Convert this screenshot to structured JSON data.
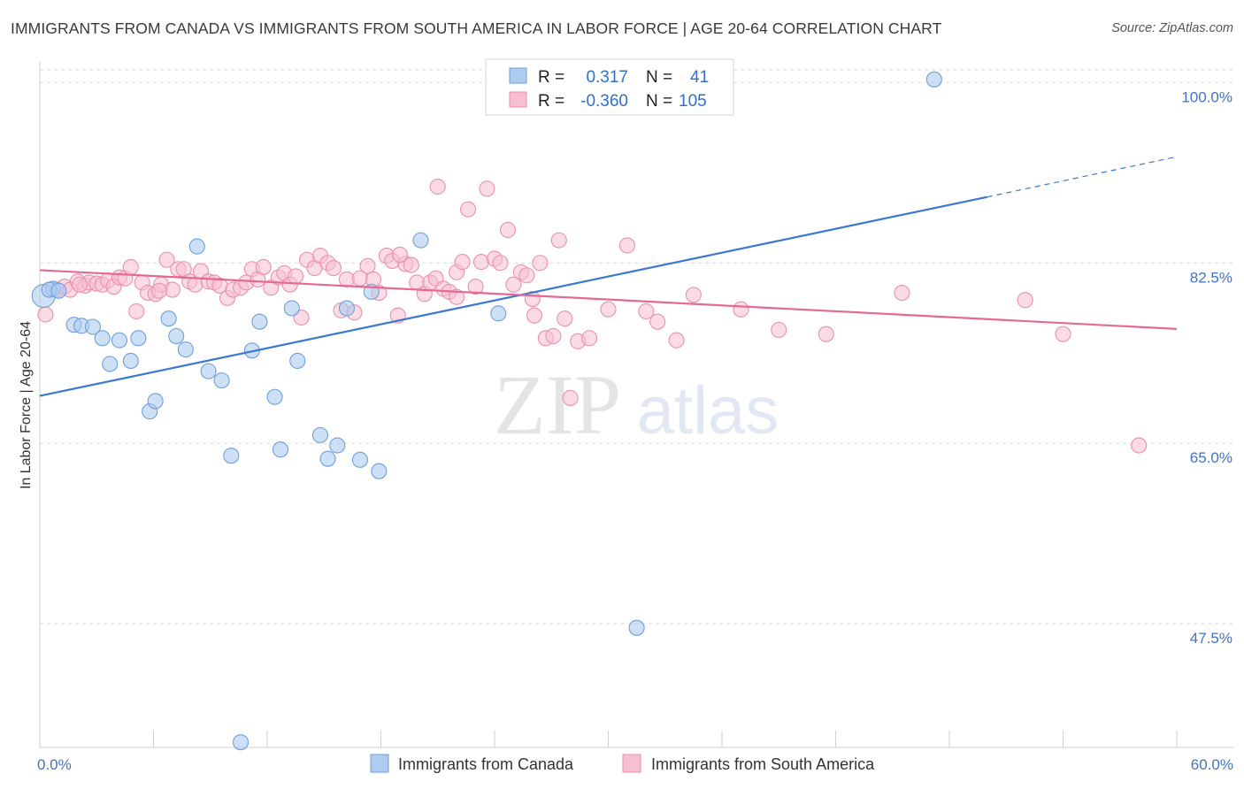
{
  "title": "IMMIGRANTS FROM CANADA VS IMMIGRANTS FROM SOUTH AMERICA IN LABOR FORCE | AGE 20-64 CORRELATION CHART",
  "source": "Source: ZipAtlas.com",
  "watermark": {
    "zip": "ZIP",
    "atlas": "atlas"
  },
  "colors": {
    "canada_fill": "#aecbf0",
    "canada_stroke": "#6f9fdc",
    "canada_line": "#3b78d0",
    "sa_fill": "#f7c0d2",
    "sa_stroke": "#ec8fae",
    "sa_line": "#e46a96",
    "tick_text": "#4472c4",
    "grid": "#d9d9d9"
  },
  "legend_top": {
    "r_label": "R =",
    "n_label": "N =",
    "canada": {
      "r": "0.317",
      "n": "41"
    },
    "south_america": {
      "r": "-0.360",
      "n": "105"
    }
  },
  "chart_data": {
    "type": "scatter",
    "title": "IMMIGRANTS FROM CANADA VS IMMIGRANTS FROM SOUTH AMERICA IN LABOR FORCE | AGE 20-64 CORRELATION CHART",
    "xlabel": "",
    "ylabel": "In Labor Force | Age 20-64",
    "xlim": [
      0,
      60
    ],
    "ylim": [
      35.5,
      102
    ],
    "x_tick_labels": [
      "0.0%",
      "60.0%"
    ],
    "y_ticks": [
      47.5,
      65.0,
      82.5,
      100.0
    ],
    "y_tick_labels": [
      "47.5%",
      "65.0%",
      "82.5%",
      "100.0%"
    ],
    "grid": "horizontal dashed",
    "legend_placement": "top-center",
    "series": [
      {
        "name": "Immigrants from Canada",
        "r": 0.317,
        "n": 41,
        "trend": {
          "x0": 0,
          "y0": 69.6,
          "x1": 50,
          "y1": 88.9,
          "dash_to_x": 60,
          "dash_to_y": 92.8
        },
        "points": [
          [
            0.2,
            79.3
          ],
          [
            0.7,
            80.0
          ],
          [
            0.5,
            79.9
          ],
          [
            1.0,
            79.8
          ],
          [
            1.8,
            76.5
          ],
          [
            2.2,
            76.4
          ],
          [
            2.8,
            76.3
          ],
          [
            3.3,
            75.2
          ],
          [
            3.7,
            72.7
          ],
          [
            4.2,
            75.0
          ],
          [
            4.8,
            73.0
          ],
          [
            5.2,
            75.2
          ],
          [
            5.8,
            68.1
          ],
          [
            6.1,
            69.1
          ],
          [
            6.8,
            77.1
          ],
          [
            7.2,
            75.4
          ],
          [
            7.7,
            74.1
          ],
          [
            8.3,
            84.1
          ],
          [
            8.9,
            72.0
          ],
          [
            9.6,
            71.1
          ],
          [
            10.1,
            63.8
          ],
          [
            10.6,
            36.0
          ],
          [
            11.2,
            74.0
          ],
          [
            11.6,
            76.8
          ],
          [
            12.4,
            69.5
          ],
          [
            12.7,
            64.4
          ],
          [
            13.3,
            78.1
          ],
          [
            13.6,
            73.0
          ],
          [
            14.8,
            65.8
          ],
          [
            15.2,
            63.5
          ],
          [
            15.7,
            64.8
          ],
          [
            16.2,
            78.1
          ],
          [
            16.9,
            63.4
          ],
          [
            17.5,
            79.7
          ],
          [
            17.9,
            62.3
          ],
          [
            20.1,
            84.7
          ],
          [
            24.2,
            77.6
          ],
          [
            28.5,
            100.3
          ],
          [
            31.5,
            47.1
          ],
          [
            33.5,
            100.3
          ],
          [
            47.2,
            100.3
          ]
        ]
      },
      {
        "name": "Immigrants from South America",
        "r": -0.36,
        "n": 105,
        "trend": {
          "x0": 0,
          "y0": 81.8,
          "x1": 60,
          "y1": 76.1
        },
        "points": [
          [
            0.3,
            77.5
          ],
          [
            0.9,
            79.9
          ],
          [
            1.3,
            80.2
          ],
          [
            1.6,
            79.9
          ],
          [
            2.0,
            80.7
          ],
          [
            2.4,
            80.3
          ],
          [
            2.6,
            80.6
          ],
          [
            3.0,
            80.5
          ],
          [
            3.3,
            80.4
          ],
          [
            3.6,
            80.8
          ],
          [
            3.9,
            80.2
          ],
          [
            4.2,
            81.1
          ],
          [
            4.5,
            81.0
          ],
          [
            4.8,
            82.1
          ],
          [
            5.1,
            77.8
          ],
          [
            5.4,
            80.6
          ],
          [
            5.7,
            79.6
          ],
          [
            6.1,
            79.5
          ],
          [
            6.4,
            80.4
          ],
          [
            6.7,
            82.8
          ],
          [
            7.0,
            79.9
          ],
          [
            7.3,
            81.9
          ],
          [
            7.6,
            81.9
          ],
          [
            7.9,
            80.7
          ],
          [
            8.2,
            80.4
          ],
          [
            8.5,
            81.7
          ],
          [
            8.9,
            80.7
          ],
          [
            9.2,
            80.6
          ],
          [
            9.5,
            80.3
          ],
          [
            9.9,
            79.1
          ],
          [
            10.2,
            79.9
          ],
          [
            10.6,
            80.1
          ],
          [
            10.9,
            80.6
          ],
          [
            11.2,
            81.9
          ],
          [
            11.5,
            80.9
          ],
          [
            11.8,
            82.1
          ],
          [
            12.2,
            80.1
          ],
          [
            12.6,
            81.1
          ],
          [
            12.9,
            81.5
          ],
          [
            13.2,
            80.4
          ],
          [
            13.5,
            81.2
          ],
          [
            13.8,
            77.2
          ],
          [
            14.1,
            82.8
          ],
          [
            14.5,
            82.0
          ],
          [
            14.8,
            83.2
          ],
          [
            15.2,
            82.5
          ],
          [
            15.5,
            82.0
          ],
          [
            15.9,
            77.9
          ],
          [
            16.2,
            80.9
          ],
          [
            16.6,
            77.7
          ],
          [
            16.9,
            81.0
          ],
          [
            17.3,
            82.2
          ],
          [
            17.6,
            80.9
          ],
          [
            17.9,
            79.6
          ],
          [
            18.3,
            83.2
          ],
          [
            18.6,
            82.7
          ],
          [
            18.9,
            77.4
          ],
          [
            19.3,
            82.4
          ],
          [
            19.6,
            82.3
          ],
          [
            19.9,
            80.6
          ],
          [
            20.3,
            79.5
          ],
          [
            20.6,
            80.6
          ],
          [
            20.9,
            81.0
          ],
          [
            21.3,
            80.0
          ],
          [
            21.6,
            79.7
          ],
          [
            22.0,
            81.6
          ],
          [
            22.3,
            82.6
          ],
          [
            22.6,
            87.7
          ],
          [
            23.0,
            80.2
          ],
          [
            23.3,
            82.6
          ],
          [
            23.6,
            89.7
          ],
          [
            24.0,
            82.9
          ],
          [
            24.3,
            82.5
          ],
          [
            24.7,
            85.7
          ],
          [
            25.0,
            80.4
          ],
          [
            25.4,
            81.6
          ],
          [
            25.7,
            81.3
          ],
          [
            26.1,
            77.4
          ],
          [
            26.4,
            82.5
          ],
          [
            26.7,
            75.2
          ],
          [
            27.1,
            75.4
          ],
          [
            27.4,
            84.7
          ],
          [
            27.7,
            77.1
          ],
          [
            28.0,
            69.4
          ],
          [
            28.4,
            74.9
          ],
          [
            29.0,
            75.2
          ],
          [
            22.0,
            79.2
          ],
          [
            19.0,
            83.3
          ],
          [
            21.0,
            89.9
          ],
          [
            26.0,
            79.0
          ],
          [
            30.0,
            78.0
          ],
          [
            31.0,
            84.2
          ],
          [
            32.0,
            77.8
          ],
          [
            32.6,
            76.8
          ],
          [
            33.6,
            75.0
          ],
          [
            34.5,
            79.4
          ],
          [
            37.0,
            78.0
          ],
          [
            39.0,
            76.0
          ],
          [
            41.5,
            75.6
          ],
          [
            45.5,
            79.6
          ],
          [
            52.0,
            78.9
          ],
          [
            54.0,
            75.6
          ],
          [
            58.0,
            64.8
          ],
          [
            2.1,
            80.4
          ],
          [
            6.3,
            79.8
          ]
        ]
      }
    ]
  },
  "bottom_legend": {
    "canada_label": "Immigrants from Canada",
    "sa_label": "Immigrants from South America"
  }
}
